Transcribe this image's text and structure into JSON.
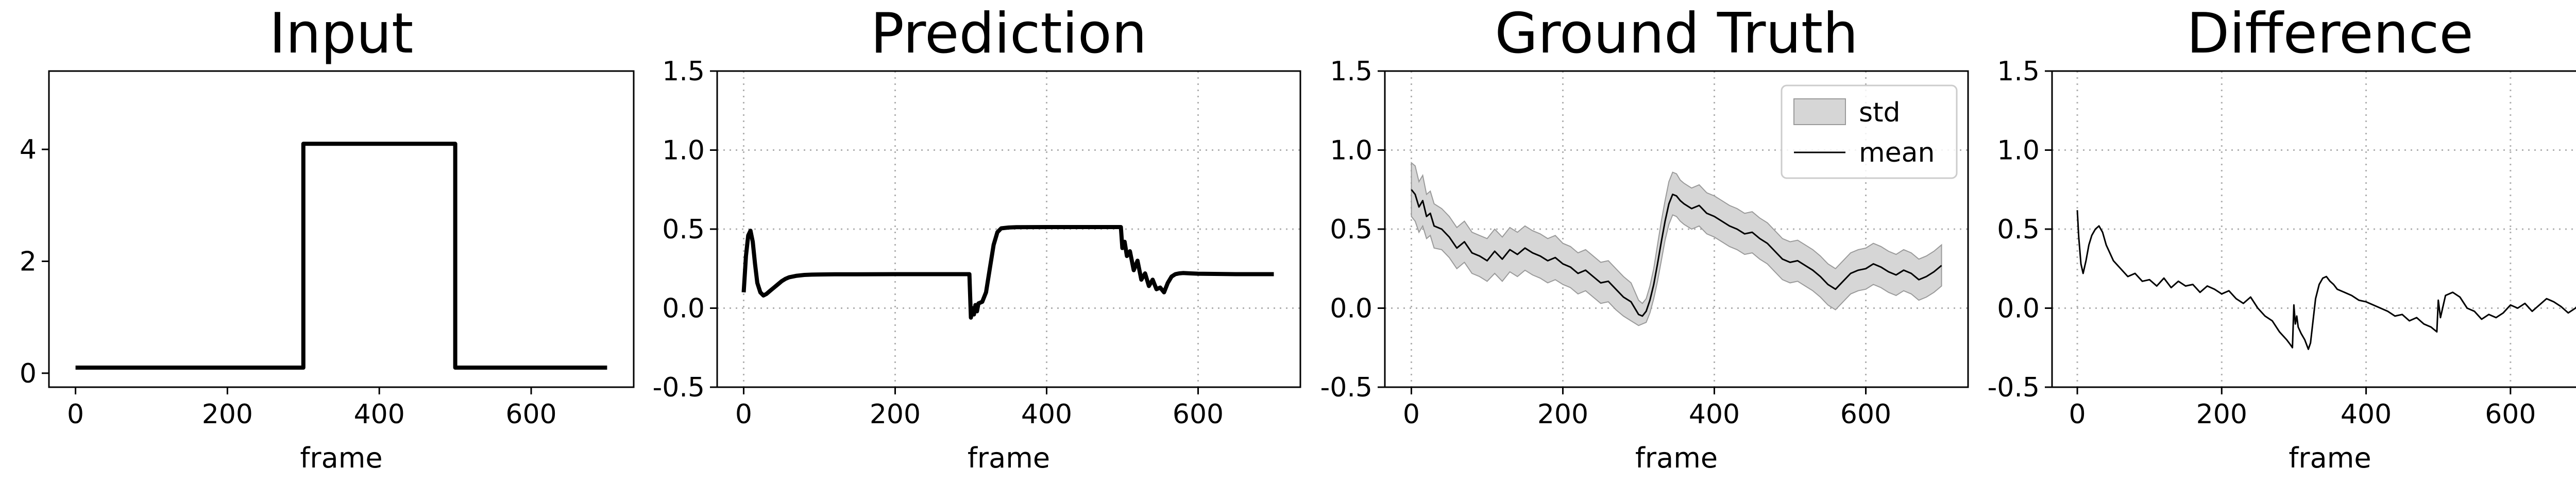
{
  "chart_data": [
    {
      "type": "line",
      "title": "Input",
      "xlabel": "frame",
      "ylabel": "",
      "xlim": [
        -35,
        735
      ],
      "ylim": [
        -0.25,
        5.4
      ],
      "xticks": [
        0,
        200,
        400,
        600
      ],
      "yticks": [
        0,
        2,
        4
      ],
      "grid": false,
      "series": [
        {
          "x": [
            0,
            300,
            300,
            500,
            500,
            700
          ],
          "y": [
            0.1,
            0.1,
            4.1,
            4.1,
            0.1,
            0.1
          ],
          "color": "#000000",
          "width": 8
        }
      ]
    },
    {
      "type": "line",
      "title": "Prediction",
      "xlabel": "frame",
      "ylabel": "",
      "xlim": [
        -35,
        735
      ],
      "ylim": [
        -0.5,
        1.5
      ],
      "xticks": [
        0,
        200,
        400,
        600
      ],
      "yticks": [
        -0.5,
        0.0,
        0.5,
        1.0,
        1.5
      ],
      "grid": true,
      "series": [
        {
          "x": [
            0,
            3,
            6,
            9,
            12,
            15,
            18,
            22,
            26,
            30,
            35,
            40,
            45,
            50,
            55,
            60,
            70,
            80,
            90,
            100,
            120,
            150,
            200,
            250,
            298,
            300,
            302,
            304,
            306,
            308,
            310,
            315,
            320,
            325,
            330,
            335,
            340,
            350,
            360,
            400,
            450,
            498,
            500,
            503,
            506,
            510,
            515,
            520,
            525,
            530,
            535,
            540,
            545,
            550,
            555,
            560,
            565,
            570,
            575,
            580,
            590,
            600,
            650,
            700
          ],
          "y": [
            0.1,
            0.33,
            0.46,
            0.49,
            0.42,
            0.28,
            0.16,
            0.1,
            0.08,
            0.09,
            0.11,
            0.13,
            0.15,
            0.17,
            0.185,
            0.195,
            0.205,
            0.21,
            0.212,
            0.213,
            0.214,
            0.214,
            0.215,
            0.215,
            0.215,
            -0.06,
            0.0,
            -0.04,
            0.02,
            -0.02,
            0.03,
            0.04,
            0.1,
            0.25,
            0.4,
            0.48,
            0.505,
            0.51,
            0.512,
            0.513,
            0.513,
            0.513,
            0.38,
            0.42,
            0.33,
            0.36,
            0.24,
            0.3,
            0.18,
            0.22,
            0.14,
            0.18,
            0.12,
            0.13,
            0.1,
            0.16,
            0.2,
            0.215,
            0.22,
            0.222,
            0.22,
            0.218,
            0.215,
            0.215
          ],
          "color": "#000000",
          "width": 8
        }
      ]
    },
    {
      "type": "area",
      "title": "Ground Truth",
      "xlabel": "frame",
      "ylabel": "",
      "xlim": [
        -35,
        735
      ],
      "ylim": [
        -0.5,
        1.5
      ],
      "xticks": [
        0,
        200,
        400,
        600
      ],
      "yticks": [
        -0.5,
        0.0,
        0.5,
        1.0,
        1.5
      ],
      "grid": true,
      "legend_position": "top-right",
      "series": [
        {
          "name": "mean",
          "x": [
            0,
            5,
            10,
            15,
            20,
            25,
            30,
            40,
            50,
            60,
            70,
            80,
            90,
            100,
            110,
            120,
            130,
            140,
            150,
            160,
            170,
            180,
            190,
            200,
            210,
            220,
            230,
            240,
            250,
            260,
            270,
            280,
            290,
            300,
            305,
            310,
            315,
            320,
            325,
            330,
            335,
            340,
            345,
            350,
            355,
            360,
            370,
            380,
            390,
            400,
            410,
            420,
            430,
            440,
            450,
            460,
            470,
            480,
            490,
            500,
            510,
            520,
            530,
            540,
            550,
            560,
            570,
            580,
            590,
            600,
            610,
            620,
            630,
            640,
            650,
            660,
            670,
            680,
            690,
            700
          ],
          "y": [
            0.75,
            0.72,
            0.64,
            0.68,
            0.58,
            0.6,
            0.52,
            0.5,
            0.45,
            0.38,
            0.42,
            0.35,
            0.33,
            0.3,
            0.36,
            0.31,
            0.37,
            0.34,
            0.38,
            0.35,
            0.33,
            0.3,
            0.32,
            0.28,
            0.26,
            0.22,
            0.24,
            0.2,
            0.16,
            0.17,
            0.12,
            0.07,
            0.04,
            -0.04,
            -0.05,
            -0.02,
            0.05,
            0.15,
            0.28,
            0.42,
            0.55,
            0.66,
            0.72,
            0.71,
            0.68,
            0.66,
            0.63,
            0.65,
            0.6,
            0.58,
            0.55,
            0.52,
            0.5,
            0.47,
            0.48,
            0.44,
            0.41,
            0.36,
            0.31,
            0.29,
            0.3,
            0.27,
            0.24,
            0.2,
            0.15,
            0.12,
            0.17,
            0.22,
            0.24,
            0.25,
            0.28,
            0.26,
            0.23,
            0.21,
            0.24,
            0.22,
            0.18,
            0.2,
            0.23,
            0.27
          ],
          "color": "#000000",
          "width": 3
        },
        {
          "name": "std",
          "x": [
            0,
            5,
            10,
            15,
            20,
            25,
            30,
            40,
            50,
            60,
            70,
            80,
            90,
            100,
            110,
            120,
            130,
            140,
            150,
            160,
            170,
            180,
            190,
            200,
            210,
            220,
            230,
            240,
            250,
            260,
            270,
            280,
            290,
            300,
            305,
            310,
            315,
            320,
            325,
            330,
            335,
            340,
            345,
            350,
            355,
            360,
            370,
            380,
            390,
            400,
            410,
            420,
            430,
            440,
            450,
            460,
            470,
            480,
            490,
            500,
            510,
            520,
            530,
            540,
            550,
            560,
            570,
            580,
            590,
            600,
            610,
            620,
            630,
            640,
            650,
            660,
            670,
            680,
            690,
            700
          ],
          "upper": [
            0.92,
            0.9,
            0.8,
            0.84,
            0.72,
            0.74,
            0.66,
            0.63,
            0.58,
            0.51,
            0.55,
            0.48,
            0.46,
            0.44,
            0.5,
            0.45,
            0.51,
            0.48,
            0.52,
            0.49,
            0.47,
            0.44,
            0.46,
            0.41,
            0.39,
            0.35,
            0.37,
            0.33,
            0.29,
            0.3,
            0.25,
            0.2,
            0.16,
            0.05,
            0.03,
            0.06,
            0.14,
            0.25,
            0.4,
            0.55,
            0.68,
            0.8,
            0.86,
            0.85,
            0.81,
            0.79,
            0.76,
            0.78,
            0.73,
            0.71,
            0.68,
            0.65,
            0.63,
            0.6,
            0.61,
            0.57,
            0.54,
            0.49,
            0.44,
            0.42,
            0.43,
            0.4,
            0.37,
            0.33,
            0.28,
            0.25,
            0.3,
            0.35,
            0.37,
            0.38,
            0.41,
            0.39,
            0.36,
            0.34,
            0.37,
            0.35,
            0.31,
            0.33,
            0.36,
            0.4
          ],
          "lower": [
            0.58,
            0.55,
            0.48,
            0.52,
            0.44,
            0.46,
            0.38,
            0.37,
            0.32,
            0.25,
            0.29,
            0.22,
            0.2,
            0.17,
            0.22,
            0.17,
            0.23,
            0.2,
            0.24,
            0.21,
            0.19,
            0.16,
            0.18,
            0.15,
            0.13,
            0.09,
            0.11,
            0.07,
            0.03,
            0.04,
            -0.01,
            -0.05,
            -0.08,
            -0.11,
            -0.1,
            -0.09,
            -0.03,
            0.06,
            0.17,
            0.3,
            0.43,
            0.53,
            0.59,
            0.58,
            0.55,
            0.53,
            0.5,
            0.52,
            0.47,
            0.45,
            0.42,
            0.39,
            0.37,
            0.34,
            0.35,
            0.31,
            0.28,
            0.23,
            0.18,
            0.16,
            0.17,
            0.14,
            0.11,
            0.07,
            0.02,
            -0.01,
            0.04,
            0.09,
            0.11,
            0.12,
            0.15,
            0.13,
            0.1,
            0.08,
            0.11,
            0.09,
            0.05,
            0.07,
            0.1,
            0.14
          ],
          "fill": "#d6d6d6",
          "edge": "#9a9a9a"
        }
      ]
    },
    {
      "type": "line",
      "title": "Difference",
      "xlabel": "frame",
      "ylabel": "",
      "xlim": [
        -35,
        735
      ],
      "ylim": [
        -0.5,
        1.5
      ],
      "xticks": [
        0,
        200,
        400,
        600
      ],
      "yticks": [
        -0.5,
        0.0,
        0.5,
        1.0,
        1.5
      ],
      "grid": true,
      "series": [
        {
          "x": [
            0,
            2,
            5,
            8,
            12,
            16,
            20,
            25,
            30,
            35,
            40,
            50,
            60,
            70,
            80,
            90,
            100,
            110,
            120,
            130,
            140,
            150,
            160,
            170,
            180,
            190,
            200,
            210,
            220,
            230,
            240,
            250,
            260,
            270,
            280,
            290,
            295,
            298,
            300,
            302,
            304,
            306,
            310,
            315,
            320,
            323,
            326,
            330,
            335,
            340,
            345,
            350,
            355,
            360,
            370,
            380,
            390,
            400,
            410,
            420,
            430,
            440,
            450,
            460,
            470,
            480,
            490,
            498,
            500,
            503,
            506,
            510,
            520,
            530,
            540,
            550,
            560,
            570,
            580,
            590,
            600,
            610,
            620,
            630,
            640,
            650,
            660,
            670,
            680,
            690,
            700
          ],
          "y": [
            0.62,
            0.45,
            0.28,
            0.22,
            0.3,
            0.4,
            0.46,
            0.5,
            0.52,
            0.48,
            0.4,
            0.3,
            0.25,
            0.2,
            0.22,
            0.17,
            0.18,
            0.14,
            0.19,
            0.13,
            0.17,
            0.14,
            0.15,
            0.1,
            0.14,
            0.12,
            0.09,
            0.11,
            0.06,
            0.03,
            0.07,
            0.0,
            -0.05,
            -0.08,
            -0.15,
            -0.2,
            -0.23,
            -0.25,
            0.02,
            -0.1,
            -0.05,
            -0.12,
            -0.16,
            -0.2,
            -0.26,
            -0.22,
            -0.1,
            0.06,
            0.15,
            0.19,
            0.2,
            0.17,
            0.15,
            0.12,
            0.1,
            0.08,
            0.05,
            0.04,
            0.02,
            0.0,
            -0.02,
            -0.05,
            -0.04,
            -0.08,
            -0.06,
            -0.1,
            -0.12,
            -0.15,
            0.05,
            -0.06,
            0.0,
            0.08,
            0.1,
            0.07,
            0.0,
            -0.02,
            -0.07,
            -0.04,
            -0.06,
            -0.03,
            0.02,
            0.0,
            0.03,
            -0.02,
            0.02,
            0.06,
            0.04,
            0.01,
            -0.03,
            0.0,
            0.05
          ],
          "color": "#000000",
          "width": 3
        }
      ]
    }
  ]
}
